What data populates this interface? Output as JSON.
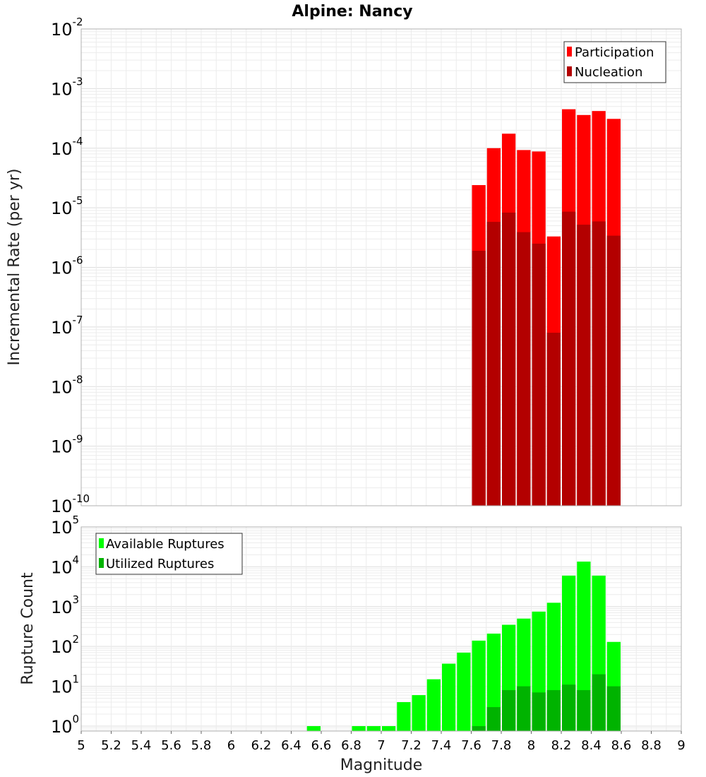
{
  "title": "Alpine: Nancy",
  "chart_data": [
    {
      "type": "bar",
      "ylabel": "Incremental Rate (per yr)",
      "y_scale": "log",
      "ylim": [
        1e-10,
        0.01
      ],
      "xlim": [
        5,
        9
      ],
      "bin_width": 0.1,
      "bar_mode": "overlay",
      "legend_position": "top-right",
      "legend": [
        "Participation",
        "Nucleation"
      ],
      "series": [
        {
          "name": "Participation",
          "color": "#ff0000",
          "x": [
            7.65,
            7.75,
            7.85,
            7.95,
            8.05,
            8.15,
            8.25,
            8.35,
            8.45,
            8.55
          ],
          "values": [
            2.4e-05,
            0.0001,
            0.000175,
            9.3e-05,
            8.8e-05,
            3.3e-06,
            0.00045,
            0.00036,
            0.00042,
            0.00031
          ]
        },
        {
          "name": "Nucleation",
          "color": "#b30000",
          "x": [
            7.65,
            7.75,
            7.85,
            7.95,
            8.05,
            8.15,
            8.25,
            8.35,
            8.45,
            8.55
          ],
          "values": [
            1.9e-06,
            5.8e-06,
            8.3e-06,
            3.9e-06,
            2.5e-06,
            8e-08,
            8.6e-06,
            5.2e-06,
            5.9e-06,
            3.4e-06
          ]
        }
      ]
    },
    {
      "type": "bar",
      "xlabel": "Magnitude",
      "ylabel": "Rupture Count",
      "y_scale": "log",
      "ylim": [
        0.75,
        100000.0
      ],
      "xlim": [
        5,
        9
      ],
      "xticks": [
        "5",
        "5.2",
        "5.4",
        "5.6",
        "5.8",
        "6",
        "6.2",
        "6.4",
        "6.6",
        "6.8",
        "7",
        "7.2",
        "7.4",
        "7.6",
        "7.8",
        "8",
        "8.2",
        "8.4",
        "8.6",
        "8.8",
        "9"
      ],
      "bin_width": 0.1,
      "bar_mode": "overlay",
      "legend_position": "top-left",
      "legend": [
        "Available Ruptures",
        "Utilized Ruptures"
      ],
      "series": [
        {
          "name": "Available Ruptures",
          "color": "#00ff00",
          "x": [
            6.55,
            6.85,
            6.95,
            7.05,
            7.15,
            7.25,
            7.35,
            7.45,
            7.55,
            7.65,
            7.75,
            7.85,
            7.95,
            8.05,
            8.15,
            8.25,
            8.35,
            8.45,
            8.55
          ],
          "values": [
            1,
            1,
            1,
            1,
            4,
            6,
            15,
            37,
            70,
            140,
            210,
            350,
            500,
            750,
            1250,
            6000,
            13500,
            6000,
            130
          ]
        },
        {
          "name": "Utilized Ruptures",
          "color": "#00b300",
          "x": [
            7.65,
            7.75,
            7.85,
            7.95,
            8.05,
            8.15,
            8.25,
            8.35,
            8.45,
            8.55
          ],
          "values": [
            1,
            3,
            8,
            10,
            7,
            8,
            11,
            8,
            20,
            10
          ]
        }
      ]
    }
  ]
}
